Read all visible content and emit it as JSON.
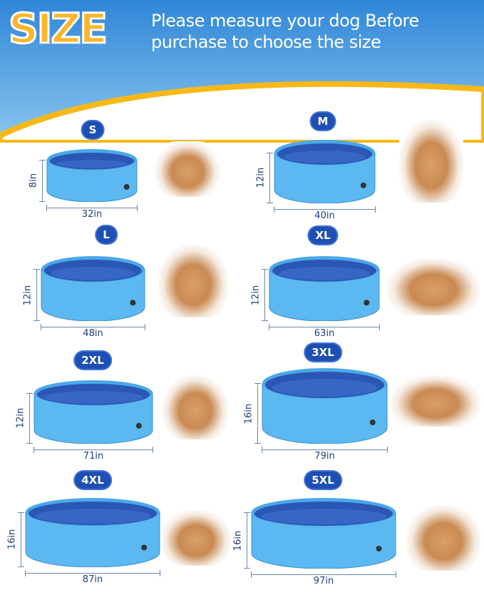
{
  "header": {
    "title": "SIZE",
    "subtitle_line1": "Please measure your dog Before",
    "subtitle_line2": "purchase to choose the size"
  },
  "colors": {
    "title": "#fbb62a",
    "badge": "#1f4fb4",
    "pool_rim": "#4aa8ea",
    "pool_inner": "#2b56b3",
    "pool_body": "#5cb8f0",
    "band": "#f7b818"
  },
  "sizes": [
    {
      "label": "S",
      "height": "8in",
      "width": "32in",
      "photo": "corgi-dog"
    },
    {
      "label": "M",
      "height": "12in",
      "width": "40in",
      "photo": "husky-dog"
    },
    {
      "label": "L",
      "height": "12in",
      "width": "48in",
      "photo": "girl-with-dog"
    },
    {
      "label": "XL",
      "height": "12in",
      "width": "63in",
      "photo": "kids-with-golden-retriever"
    },
    {
      "label": "2XL",
      "height": "12in",
      "width": "71in",
      "photo": "mother-son-dog"
    },
    {
      "label": "3XL",
      "height": "16in",
      "width": "79in",
      "photo": "family-with-dog"
    },
    {
      "label": "4XL",
      "height": "16in",
      "width": "87in",
      "photo": "family-with-dog"
    },
    {
      "label": "5XL",
      "height": "16in",
      "width": "97in",
      "photo": "family-with-dogs"
    }
  ]
}
